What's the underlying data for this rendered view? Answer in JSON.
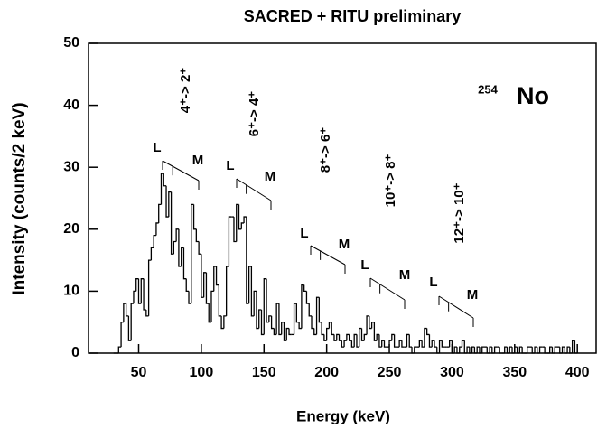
{
  "chart_data": {
    "type": "histogram",
    "title": "SACRED + RITU   preliminary",
    "xlabel": "Energy    (keV)",
    "ylabel": "Intensity  (counts/2 keV)",
    "nucleus": {
      "mass": "254",
      "symbol": "No"
    },
    "color": "#000000",
    "xlim": [
      10,
      415
    ],
    "ylim": [
      0,
      50
    ],
    "xticks": [
      50,
      100,
      150,
      200,
      250,
      300,
      350,
      400
    ],
    "yticks": [
      0,
      10,
      20,
      30,
      40,
      50
    ],
    "annotations": [
      {
        "label": "4⁺-> 2⁺",
        "low": "L",
        "high": "M"
      },
      {
        "label": "6⁺-> 4⁺",
        "low": "L",
        "high": "M"
      },
      {
        "label": "8⁺-> 6⁺",
        "low": "L",
        "high": "M"
      },
      {
        "label": "10⁺-> 8⁺",
        "low": "L",
        "high": "M"
      },
      {
        "label": "12⁺-> 10⁺",
        "low": "L",
        "high": "M"
      }
    ],
    "bins": [
      30,
      32,
      34,
      36,
      38,
      40,
      42,
      44,
      46,
      48,
      50,
      52,
      54,
      56,
      58,
      60,
      62,
      64,
      66,
      68,
      70,
      72,
      74,
      76,
      78,
      80,
      82,
      84,
      86,
      88,
      90,
      92,
      94,
      96,
      98,
      100,
      102,
      104,
      106,
      108,
      110,
      112,
      114,
      116,
      118,
      120,
      122,
      124,
      126,
      128,
      130,
      132,
      134,
      136,
      138,
      140,
      142,
      144,
      146,
      148,
      150,
      152,
      154,
      156,
      158,
      160,
      162,
      164,
      166,
      168,
      170,
      172,
      174,
      176,
      178,
      180,
      182,
      184,
      186,
      188,
      190,
      192,
      194,
      196,
      198,
      200,
      202,
      204,
      206,
      208,
      210,
      212,
      214,
      216,
      218,
      220,
      222,
      224,
      226,
      228,
      230,
      232,
      234,
      236,
      238,
      240,
      242,
      244,
      246,
      248,
      250,
      252,
      254,
      256,
      258,
      260,
      262,
      264,
      266,
      268,
      270,
      272,
      274,
      276,
      278,
      280,
      282,
      284,
      286,
      288,
      290,
      292,
      294,
      296,
      298,
      300,
      302,
      304,
      306,
      308,
      310,
      312,
      314,
      316,
      318,
      320,
      322,
      324,
      326,
      328,
      330,
      332,
      334,
      336,
      338,
      340,
      342,
      344,
      346,
      348,
      350,
      352,
      354,
      356,
      358,
      360,
      362,
      364,
      366,
      368,
      370,
      372,
      374,
      376,
      378,
      380,
      382,
      384,
      386,
      388,
      390,
      392,
      394,
      396,
      398,
      400
    ],
    "values": [
      0,
      0,
      1,
      5,
      8,
      6,
      2,
      8,
      10,
      12,
      8,
      12,
      7,
      6,
      15,
      17,
      19,
      21,
      24,
      29,
      27,
      22,
      26,
      16,
      18,
      20,
      14,
      17,
      12,
      10,
      8,
      24,
      20,
      18,
      16,
      9,
      13,
      8,
      5,
      10,
      14,
      11,
      6,
      4,
      6,
      14,
      22,
      22,
      18,
      24,
      20,
      21,
      22,
      8,
      14,
      6,
      10,
      4,
      7,
      3,
      12,
      5,
      6,
      4,
      3,
      8,
      3,
      5,
      2,
      4,
      3,
      3,
      8,
      5,
      4,
      11,
      10,
      8,
      6,
      4,
      3,
      9,
      5,
      3,
      2,
      4,
      5,
      3,
      2,
      3,
      2,
      1,
      2,
      3,
      2,
      1,
      3,
      1,
      4,
      2,
      3,
      6,
      4,
      5,
      2,
      3,
      1,
      2,
      1,
      1,
      2,
      3,
      1,
      1,
      2,
      1,
      1,
      3,
      1,
      0,
      1,
      1,
      2,
      1,
      4,
      3,
      1,
      2,
      1,
      0,
      2,
      1,
      1,
      1,
      2,
      0,
      1,
      0,
      1,
      2,
      0,
      1,
      0,
      1,
      0,
      1,
      0,
      1,
      1,
      0,
      1,
      0,
      1,
      1,
      0,
      0,
      1,
      0,
      1,
      0,
      1,
      0,
      1,
      0,
      0,
      1,
      1,
      0,
      1,
      0,
      1,
      1,
      0,
      0,
      1,
      0,
      1,
      1,
      0,
      1,
      0,
      1,
      0,
      2,
      0
    ]
  }
}
